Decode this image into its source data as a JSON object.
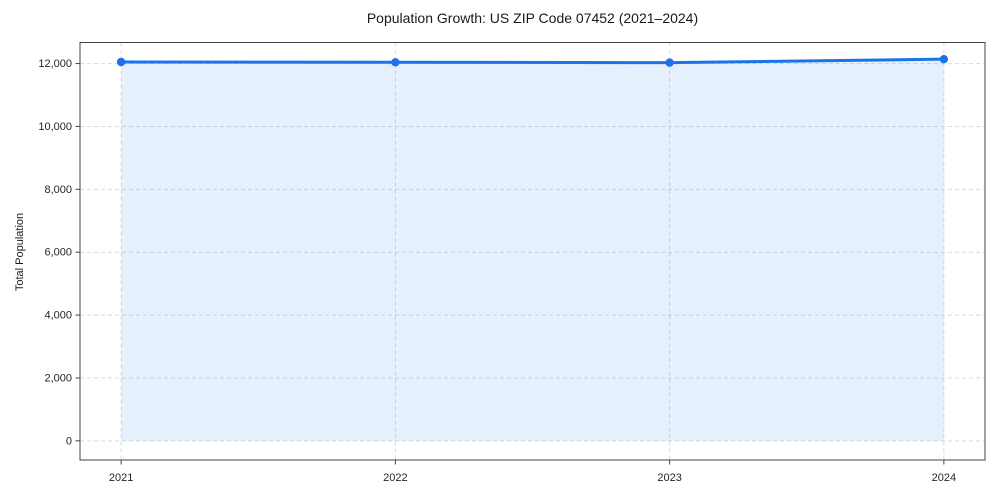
{
  "chart_data": {
    "type": "line",
    "title": "Population Growth: US ZIP Code 07452 (2021–2024)",
    "xlabel": "",
    "ylabel": "Total Population",
    "categories": [
      "2021",
      "2022",
      "2023",
      "2024"
    ],
    "series": [
      {
        "name": "Total Population",
        "values": [
          12050,
          12040,
          12030,
          12140
        ]
      }
    ],
    "yticks": [
      0,
      2000,
      4000,
      6000,
      8000,
      10000,
      12000
    ],
    "ytick_labels": [
      "0",
      "2,000",
      "4,000",
      "6,000",
      "8,000",
      "10,000",
      "12,000"
    ],
    "ylim": [
      -610,
      12670
    ],
    "grid": "both-dashed",
    "legend": "none",
    "marker": "circle",
    "area_fill": true,
    "colors": {
      "line": "#1a73e8",
      "marker": "#1a73e8",
      "fill": "#1a73e8",
      "fill_opacity": 0.11,
      "grid": "#d9d9d9",
      "spine": "#444444",
      "tick_text": "#262626",
      "title_text": "#1a1a1a",
      "background": "#ffffff"
    }
  }
}
